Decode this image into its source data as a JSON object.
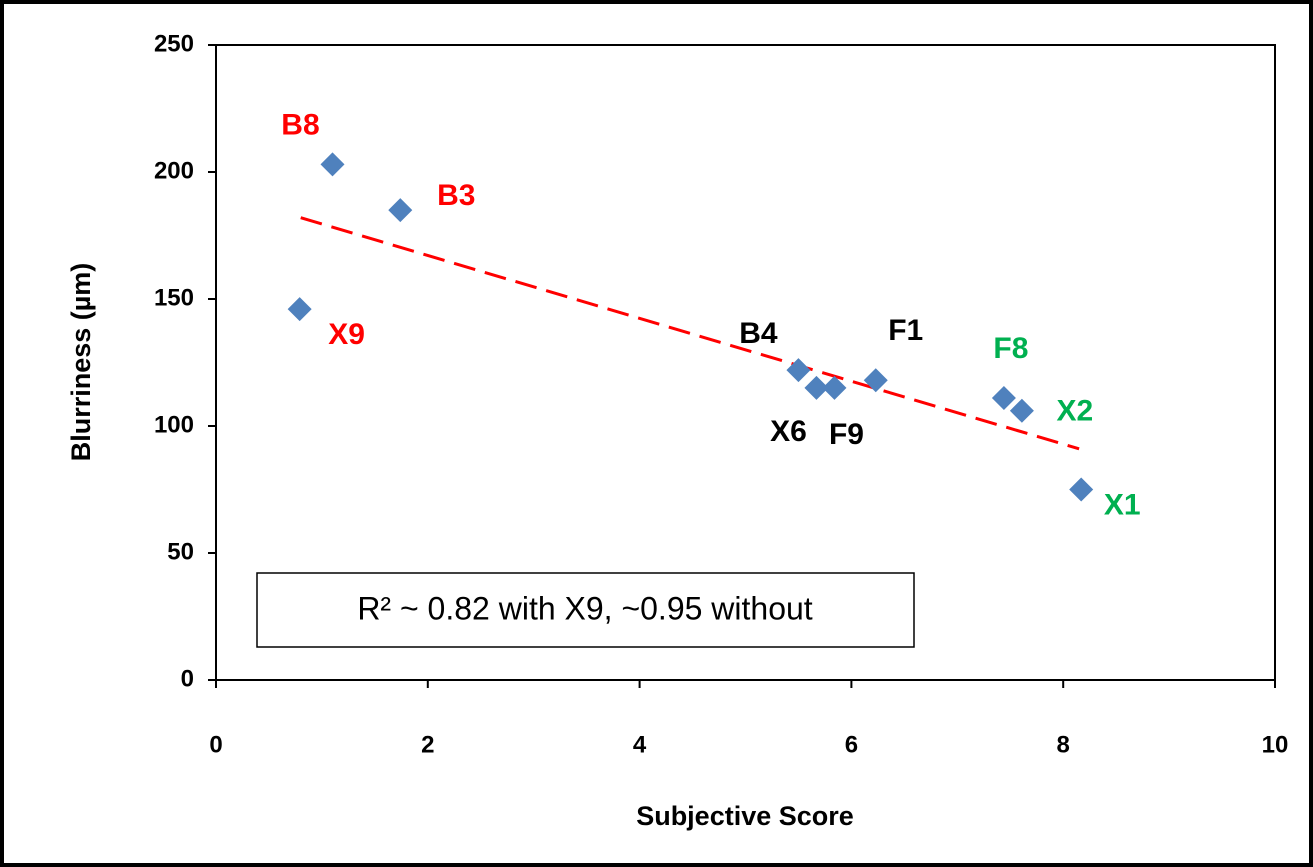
{
  "chart_data": {
    "type": "scatter",
    "x_label": "Subjective Score",
    "y_label": "Blurriness (µm)",
    "x": [
      1.1,
      1.74,
      0.79,
      5.5,
      5.67,
      5.84,
      6.23,
      7.44,
      7.61,
      8.17
    ],
    "values": [
      203,
      185,
      146,
      122,
      115,
      115,
      118,
      111,
      106,
      75
    ],
    "color": "#4f81bd",
    "point_labels": [
      "B8",
      "B3",
      "X9",
      "B4",
      "X6",
      "F9",
      "F1",
      "F8",
      "X2",
      "X1"
    ],
    "label_colors": [
      "#ff0000",
      "#ff0000",
      "#ff0000",
      "#000000",
      "#000000",
      "#000000",
      "#000000",
      "#00b050",
      "#00b050",
      "#00b050"
    ],
    "trendline": {
      "x": [
        0.8,
        8.15
      ],
      "y": [
        182,
        91
      ],
      "color": "#ff0000"
    },
    "annotation": "R² ~ 0.82 with X9, ~0.95 without",
    "xlim": [
      0,
      10
    ],
    "xticks": [
      0,
      2,
      4,
      6,
      8,
      10
    ],
    "ylim": [
      0,
      250
    ],
    "yticks": [
      0,
      50,
      100,
      150,
      200,
      250
    ]
  }
}
